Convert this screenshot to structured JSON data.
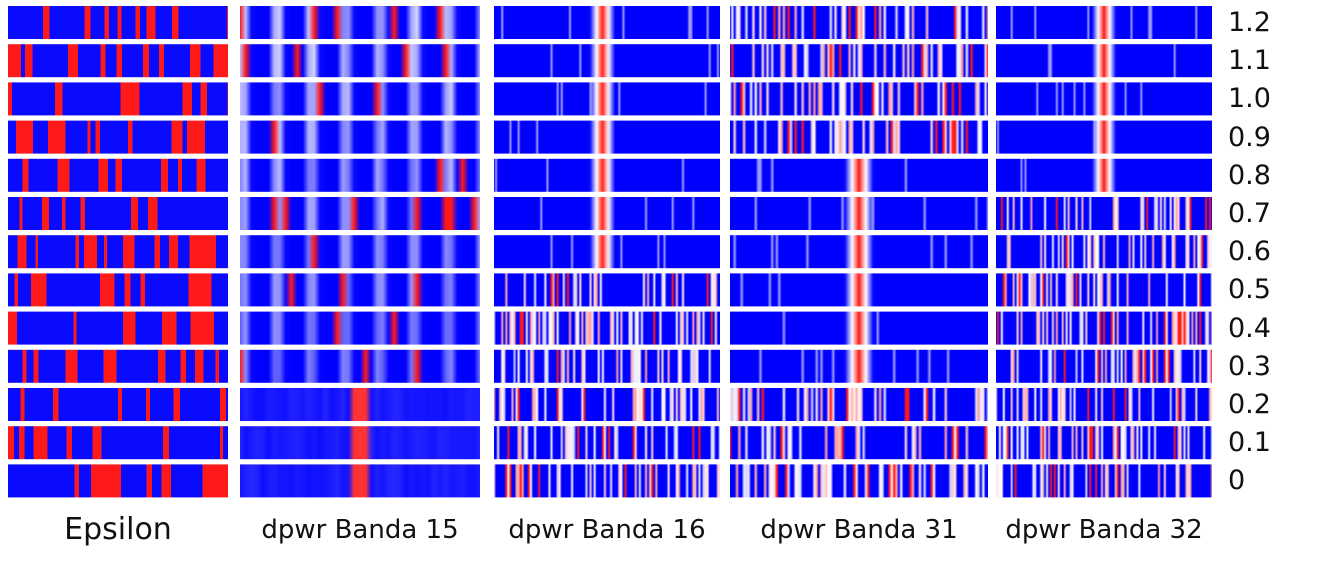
{
  "chart_data": {
    "type": "heatmap",
    "rows": [
      "1.2",
      "1.1",
      "1.0",
      "0.9",
      "0.8",
      "0.7",
      "0.6",
      "0.5",
      "0.4",
      "0.3",
      "0.2",
      "0.1",
      "0"
    ],
    "columns": [
      {
        "name": "Epsilon"
      },
      {
        "name": "dpwr Banda 15"
      },
      {
        "name": "dpwr Banda 16"
      },
      {
        "name": "dpwr Banda 31"
      },
      {
        "name": "dpwr Banda 32"
      }
    ],
    "colors": {
      "low": "#0000ff",
      "mid": "#ffffff",
      "high": "#ff0000",
      "background": "#ffffff"
    }
  }
}
